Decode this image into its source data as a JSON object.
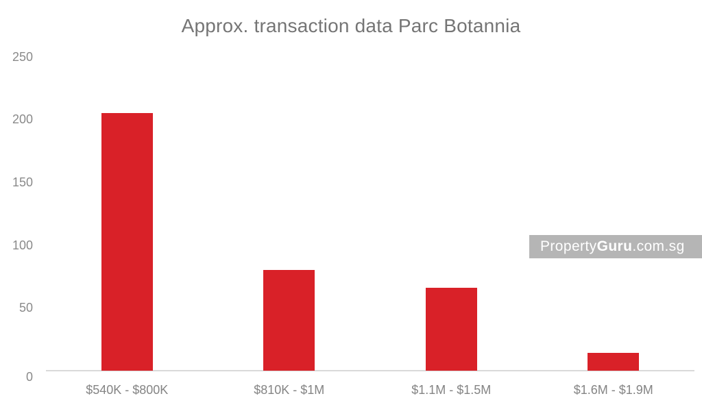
{
  "chart_data": {
    "type": "bar",
    "title": "Approx. transaction data Parc Botannia",
    "categories": [
      "$540K - $800K",
      "$810K - $1M",
      "$1.1M - $1.5M",
      "$1.6M - $1.9M"
    ],
    "values": [
      205,
      80,
      66,
      14
    ],
    "xlabel": "",
    "ylabel": "",
    "ylim": [
      0,
      250
    ],
    "yticks": [
      0,
      50,
      100,
      150,
      200,
      250
    ],
    "grid": false,
    "legend_position": "none",
    "bar_color": "#d92128",
    "axis_line_color": "#d9d9d9",
    "title_color": "#757575",
    "tick_label_color": "#8a8a8a",
    "background_color": "#ffffff"
  },
  "watermark": {
    "part1": "Property",
    "part2": "Guru",
    "part3": ".com.sg",
    "badge_color": "#b5b5b5",
    "text_color": "#ffffff"
  }
}
